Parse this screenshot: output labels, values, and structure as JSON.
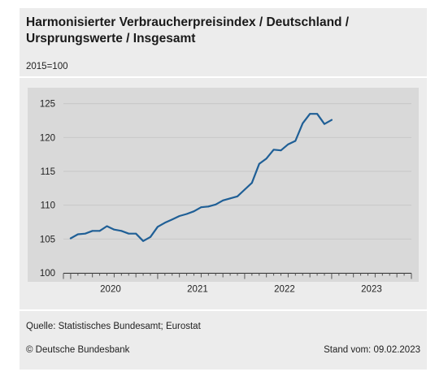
{
  "header": {
    "title_line1": "Harmonisierter Verbraucherpreisindex / Deutschland /",
    "title_line2": "Ursprungswerte / Insgesamt",
    "unit": "2015=100"
  },
  "footer": {
    "source": "Quelle: Statistisches Bundesamt; Eurostat",
    "copyright": "© Deutsche Bundesbank",
    "stand": "Stand vom: 09.02.2023"
  },
  "colors": {
    "line": "#1f5f96",
    "plot_bg": "#d9d9d9",
    "panel_bg": "#ececec"
  },
  "chart_data": {
    "type": "line",
    "title": "Harmonisierter Verbraucherpreisindex / Deutschland / Ursprungswerte / Insgesamt",
    "ylabel": "2015=100",
    "ylim": [
      100,
      127
    ],
    "yticks": [
      100,
      105,
      110,
      115,
      120,
      125
    ],
    "xlim": [
      "2019-12",
      "2023-12"
    ],
    "year_labels": [
      "2020",
      "2021",
      "2022",
      "2023"
    ],
    "grid": true,
    "legend": "none",
    "x": [
      "2020-01",
      "2020-02",
      "2020-03",
      "2020-04",
      "2020-05",
      "2020-06",
      "2020-07",
      "2020-08",
      "2020-09",
      "2020-10",
      "2020-11",
      "2020-12",
      "2021-01",
      "2021-02",
      "2021-03",
      "2021-04",
      "2021-05",
      "2021-06",
      "2021-07",
      "2021-08",
      "2021-09",
      "2021-10",
      "2021-11",
      "2021-12",
      "2022-01",
      "2022-02",
      "2022-03",
      "2022-04",
      "2022-05",
      "2022-06",
      "2022-07",
      "2022-08",
      "2022-09",
      "2022-10",
      "2022-11",
      "2022-12",
      "2023-01"
    ],
    "series": [
      {
        "values": [
          105.1,
          105.7,
          105.8,
          106.2,
          106.2,
          106.9,
          106.4,
          106.2,
          105.8,
          105.8,
          104.7,
          105.3,
          106.8,
          107.4,
          107.9,
          108.4,
          108.7,
          109.1,
          109.7,
          109.8,
          110.1,
          110.7,
          111.0,
          111.3,
          112.3,
          113.3,
          116.1,
          116.9,
          118.2,
          118.1,
          119.0,
          119.5,
          122.1,
          123.5,
          123.5,
          122.0,
          122.6
        ]
      }
    ]
  }
}
